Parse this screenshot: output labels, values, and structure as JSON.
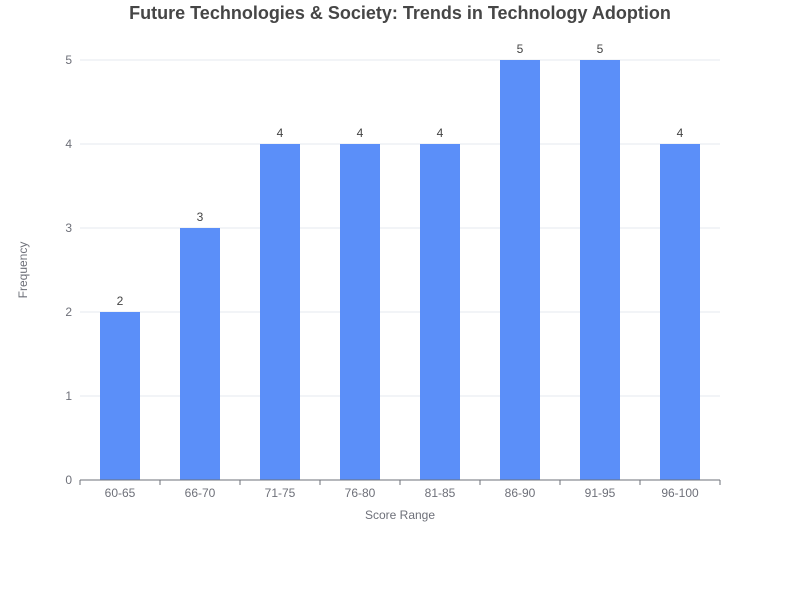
{
  "chart_data": {
    "type": "bar",
    "title": "Future Technologies & Society: Trends in Technology Adoption",
    "xlabel": "Score Range",
    "ylabel": "Frequency",
    "categories": [
      "60-65",
      "66-70",
      "71-75",
      "76-80",
      "81-85",
      "86-90",
      "91-95",
      "96-100"
    ],
    "values": [
      2,
      3,
      4,
      4,
      4,
      5,
      5,
      4
    ],
    "ylim": [
      0,
      5
    ],
    "yticks": [
      0,
      1,
      2,
      3,
      4,
      5
    ],
    "grid": true,
    "show_data_labels": true,
    "colors": {
      "bar": "#5b8ff9",
      "grid": "#e6e8ef",
      "axis": "#6e7079",
      "title": "#464646",
      "label": "#6e7079",
      "data_label": "#444444"
    }
  }
}
